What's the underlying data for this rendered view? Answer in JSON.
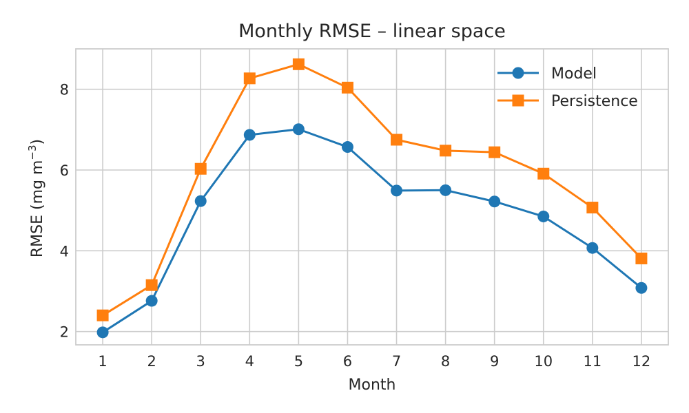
{
  "chart_data": {
    "type": "line",
    "title": "Monthly RMSE – linear space",
    "xlabel": "Month",
    "ylabel": "RMSE (mg m",
    "ylabel_superscript": "−3",
    "ylabel_close": ")",
    "categories": [
      1,
      2,
      3,
      4,
      5,
      6,
      7,
      8,
      9,
      10,
      11,
      12
    ],
    "xlim": [
      0.45,
      12.55
    ],
    "ylim": [
      1.67,
      9.0
    ],
    "yticks": [
      2,
      4,
      6,
      8
    ],
    "grid": true,
    "legend": "top-right",
    "series": [
      {
        "name": "Model",
        "marker": "circle",
        "color": "#1f77b4",
        "values": [
          1.98,
          2.76,
          5.23,
          6.87,
          7.01,
          6.57,
          5.49,
          5.5,
          5.22,
          4.85,
          4.07,
          3.08
        ]
      },
      {
        "name": "Persistence",
        "marker": "square",
        "color": "#ff7f0e",
        "values": [
          2.4,
          3.15,
          6.03,
          8.27,
          8.62,
          8.04,
          6.75,
          6.48,
          6.44,
          5.91,
          5.07,
          3.81
        ]
      }
    ]
  }
}
